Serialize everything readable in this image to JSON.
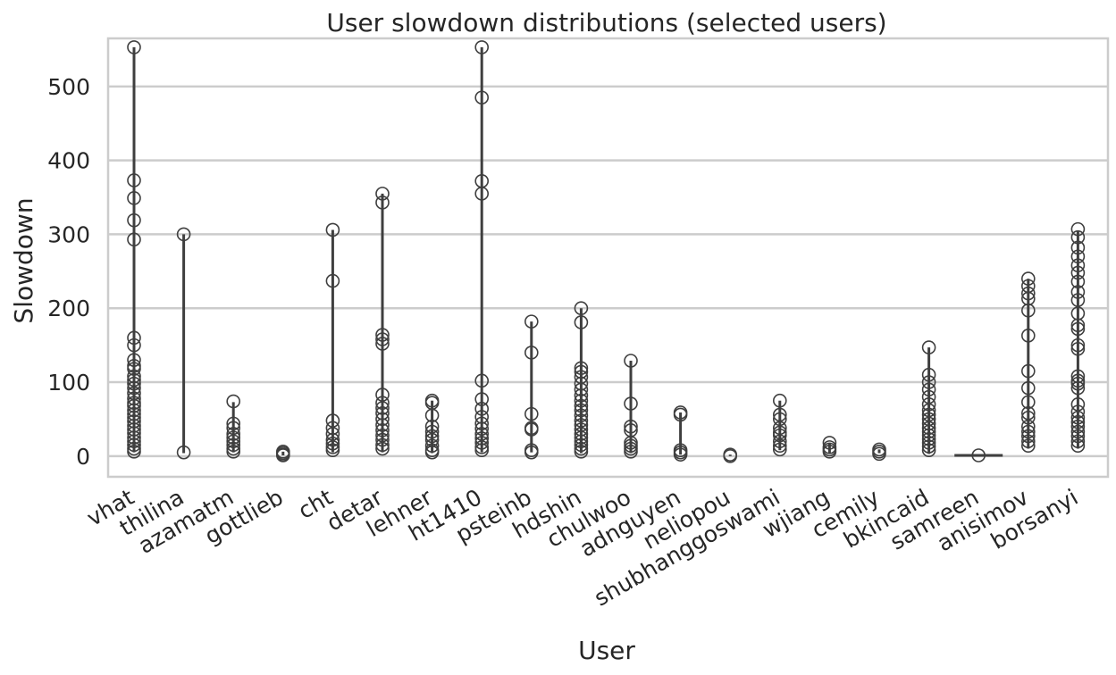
{
  "chart_data": {
    "type": "box",
    "title": "User slowdown distributions (selected users)",
    "xlabel": "User",
    "ylabel": "Slowdown",
    "ylim": [
      -28,
      565
    ],
    "yticks": [
      0,
      100,
      200,
      300,
      400,
      500
    ],
    "grid": "horizontal",
    "colors": {
      "box": "#3f3f3f",
      "grid": "#cccccc",
      "frame": "#cccccc"
    },
    "categories": [
      "vhat",
      "thilina",
      "azamatm",
      "gottlieb",
      "cht",
      "detar",
      "lehner",
      "ht1410",
      "psteinb",
      "hdshin",
      "chulwoo",
      "adnguyen",
      "neliopou",
      "shubhanggoswami",
      "wjiang",
      "cemily",
      "bkincaid",
      "samreen",
      "anisimov",
      "borsanyi"
    ],
    "series": [
      {
        "whisker": [
          5,
          553
        ],
        "outliers": [
          553,
          373,
          349,
          319,
          293,
          160,
          150,
          130,
          122,
          118,
          108,
          103,
          98,
          92,
          85,
          78,
          72,
          68,
          62,
          57,
          52,
          47,
          41,
          36,
          31,
          25,
          20,
          15,
          10,
          6
        ]
      },
      {
        "whisker": [
          4,
          300
        ],
        "outliers": [
          300,
          5
        ]
      },
      {
        "whisker": [
          5,
          73
        ],
        "outliers": [
          74,
          44,
          38,
          30,
          25,
          20,
          15,
          10,
          6
        ]
      },
      {
        "whisker": [
          1,
          6
        ],
        "outliers": [
          6,
          4,
          2,
          1
        ]
      },
      {
        "whisker": [
          5,
          306
        ],
        "outliers": [
          306,
          237,
          48,
          38,
          30,
          22,
          17,
          12,
          8
        ]
      },
      {
        "whisker": [
          5,
          355
        ],
        "outliers": [
          355,
          343,
          164,
          158,
          152,
          83,
          72,
          65,
          58,
          50,
          42,
          35,
          28,
          22,
          15,
          10
        ]
      },
      {
        "whisker": [
          4,
          75
        ],
        "outliers": [
          75,
          72,
          55,
          40,
          33,
          27,
          22,
          14,
          8,
          5
        ]
      },
      {
        "whisker": [
          5,
          553
        ],
        "outliers": [
          553,
          485,
          372,
          355,
          102,
          77,
          64,
          53,
          44,
          37,
          30,
          24,
          18,
          12,
          8
        ]
      },
      {
        "whisker": [
          5,
          182
        ],
        "outliers": [
          182,
          140,
          57,
          38,
          36,
          8,
          5
        ]
      },
      {
        "whisker": [
          4,
          200
        ],
        "outliers": [
          200,
          181,
          119,
          114,
          107,
          98,
          90,
          82,
          75,
          68,
          62,
          55,
          48,
          42,
          36,
          30,
          25,
          20,
          15,
          10,
          6
        ]
      },
      {
        "whisker": [
          4,
          129
        ],
        "outliers": [
          129,
          71,
          40,
          35,
          18,
          14,
          10,
          6
        ]
      },
      {
        "whisker": [
          2,
          59
        ],
        "outliers": [
          59,
          56,
          8,
          5,
          2
        ]
      },
      {
        "whisker": [
          0,
          2
        ],
        "outliers": [
          2,
          0
        ]
      },
      {
        "whisker": [
          8,
          75
        ],
        "outliers": [
          75,
          56,
          50,
          38,
          32,
          28,
          20,
          14,
          9
        ]
      },
      {
        "whisker": [
          4,
          17
        ],
        "outliers": [
          18,
          12,
          9,
          6
        ]
      },
      {
        "whisker": [
          4,
          9
        ],
        "outliers": [
          9,
          6,
          3
        ]
      },
      {
        "whisker": [
          3,
          147
        ],
        "outliers": [
          147,
          110,
          100,
          90,
          80,
          70,
          62,
          56,
          50,
          44,
          38,
          33,
          28,
          23,
          18,
          13,
          8
        ]
      },
      {
        "whisker": [
          1,
          1
        ],
        "outliers": [
          1
        ]
      },
      {
        "whisker": [
          10,
          240
        ],
        "outliers": [
          240,
          230,
          220,
          213,
          197,
          163,
          115,
          92,
          73,
          58,
          52,
          40,
          33,
          27,
          20,
          14
        ]
      },
      {
        "whisker": [
          10,
          305
        ],
        "outliers": [
          307,
          296,
          282,
          270,
          258,
          248,
          236,
          222,
          211,
          193,
          177,
          172,
          150,
          145,
          108,
          102,
          98,
          92,
          70,
          60,
          52,
          46,
          40,
          33,
          27,
          20,
          14
        ]
      }
    ]
  }
}
